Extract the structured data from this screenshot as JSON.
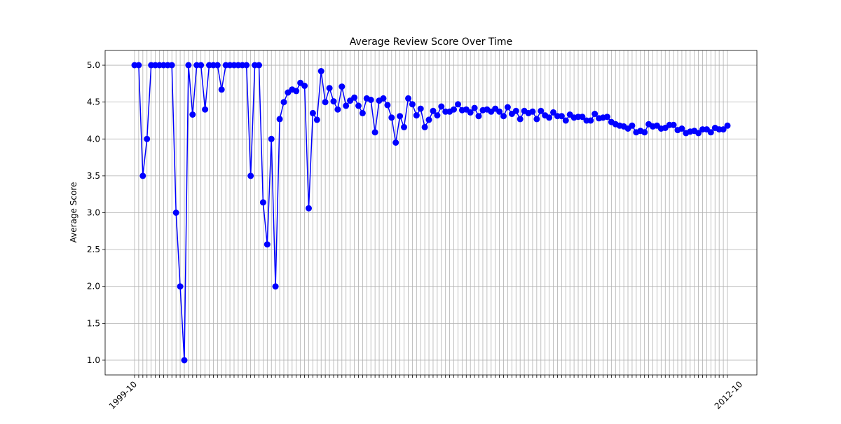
{
  "chart_data": {
    "type": "line",
    "title": "Average Review Score Over Time",
    "xlabel": "",
    "ylabel": "Average Score",
    "ylim": [
      0.8,
      5.2
    ],
    "yticks": [
      "1.0",
      "1.5",
      "2.0",
      "2.5",
      "3.0",
      "3.5",
      "4.0",
      "4.5",
      "5.0"
    ],
    "x_first_label": "1999-10",
    "x_last_label": "2012-10",
    "x_count": 142,
    "grid": true,
    "legend": "none",
    "x_tick_rotation": 45,
    "colors": {
      "line": "#0000ff",
      "grid": "#b0b0b0",
      "axes": "#000000"
    },
    "series": [
      {
        "values": [
          5.0,
          5.0,
          3.5,
          4.0,
          5.0,
          5.0,
          5.0,
          5.0,
          5.0,
          5.0,
          3.0,
          2.0,
          1.0,
          5.0,
          4.33,
          5.0,
          5.0,
          4.4,
          5.0,
          5.0,
          5.0,
          4.67,
          5.0,
          5.0,
          5.0,
          5.0,
          5.0,
          5.0,
          3.5,
          5.0,
          5.0,
          3.14,
          2.57,
          4.0,
          2.0,
          4.27,
          4.5,
          4.63,
          4.67,
          4.65,
          4.76,
          4.72,
          3.06,
          4.35,
          4.26,
          4.92,
          4.5,
          4.69,
          4.51,
          4.4,
          4.71,
          4.45,
          4.52,
          4.56,
          4.45,
          4.35,
          4.55,
          4.53,
          4.09,
          4.52,
          4.55,
          4.46,
          4.29,
          3.95,
          4.31,
          4.16,
          4.55,
          4.47,
          4.32,
          4.41,
          4.16,
          4.26,
          4.38,
          4.32,
          4.44,
          4.37,
          4.37,
          4.4,
          4.47,
          4.39,
          4.4,
          4.36,
          4.42,
          4.31,
          4.39,
          4.4,
          4.37,
          4.41,
          4.37,
          4.31,
          4.43,
          4.34,
          4.38,
          4.27,
          4.38,
          4.35,
          4.37,
          4.27,
          4.38,
          4.32,
          4.29,
          4.36,
          4.31,
          4.31,
          4.25,
          4.33,
          4.29,
          4.3,
          4.3,
          4.25,
          4.25,
          4.34,
          4.28,
          4.29,
          4.3,
          4.23,
          4.2,
          4.18,
          4.17,
          4.14,
          4.18,
          4.09,
          4.11,
          4.09,
          4.2,
          4.17,
          4.18,
          4.14,
          4.15,
          4.19,
          4.19,
          4.12,
          4.14,
          4.08,
          4.1,
          4.11,
          4.08,
          4.13,
          4.13,
          4.09,
          4.15,
          4.13,
          4.13,
          4.18
        ]
      }
    ]
  }
}
